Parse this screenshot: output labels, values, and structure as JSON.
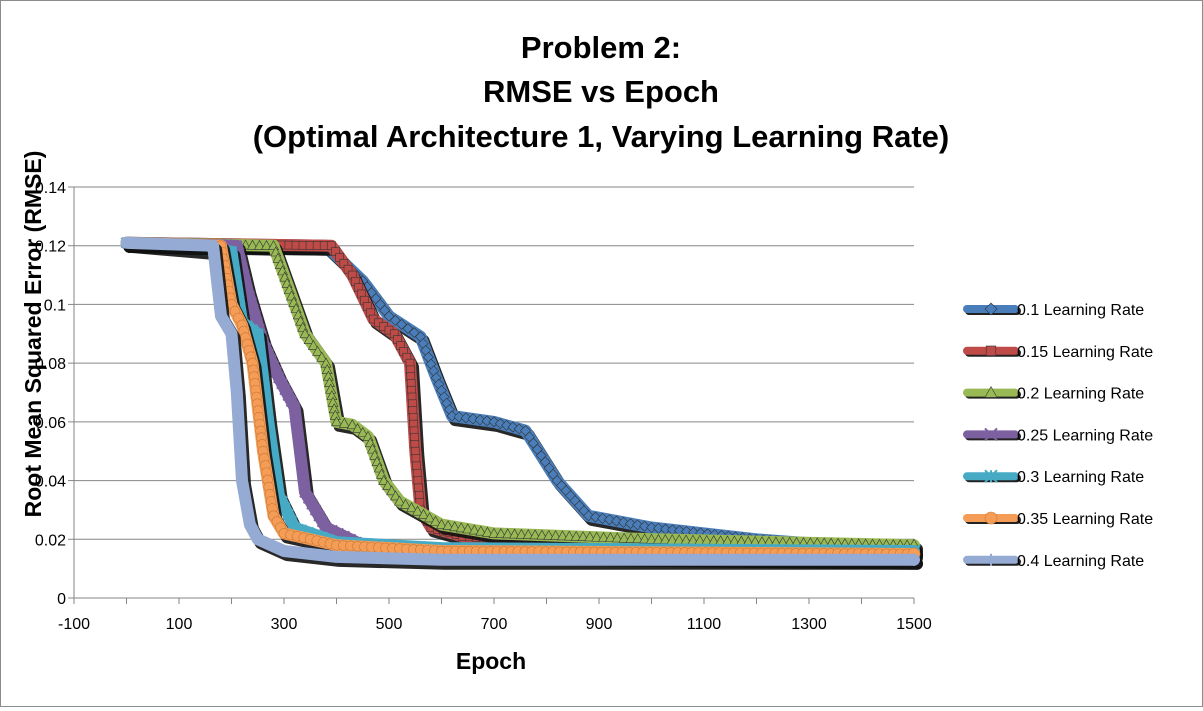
{
  "chart_data": {
    "type": "line",
    "title_lines": [
      "Problem 2:",
      "RMSE vs Epoch",
      "(Optimal Architecture 1, Varying Learning Rate)"
    ],
    "xlabel": "Epoch",
    "ylabel": "Root Mean Squared Error (RMSE)",
    "xlim": [
      -100,
      1500
    ],
    "ylim": [
      0,
      0.14
    ],
    "x_ticks": [
      "-100",
      "100",
      "300",
      "500",
      "700",
      "900",
      "1100",
      "1300",
      "1500"
    ],
    "y_ticks": [
      "0",
      "0.02",
      "0.04",
      "0.06",
      "0.08",
      "0.1",
      "0.12",
      "0.14"
    ],
    "grid": "horizontal",
    "legend_position": "right",
    "series": [
      {
        "name": "0.1 Learning Rate",
        "color": "#4A7EBB",
        "marker": "diamond",
        "x": [
          0,
          380,
          450,
          500,
          560,
          590,
          620,
          700,
          760,
          820,
          880,
          1000,
          1200,
          1500
        ],
        "y": [
          0.121,
          0.12,
          0.108,
          0.096,
          0.089,
          0.075,
          0.062,
          0.06,
          0.057,
          0.04,
          0.028,
          0.024,
          0.02,
          0.016
        ]
      },
      {
        "name": "0.15 Learning Rate",
        "color": "#BE4B48",
        "marker": "square",
        "x": [
          0,
          390,
          430,
          470,
          510,
          540,
          550,
          560,
          580,
          640,
          800,
          1500
        ],
        "y": [
          0.121,
          0.12,
          0.11,
          0.095,
          0.09,
          0.08,
          0.05,
          0.03,
          0.024,
          0.021,
          0.019,
          0.017
        ]
      },
      {
        "name": "0.2 Learning Rate",
        "color": "#98B954",
        "marker": "triangle",
        "x": [
          0,
          280,
          310,
          340,
          380,
          400,
          430,
          460,
          490,
          520,
          600,
          700,
          1000,
          1500
        ],
        "y": [
          0.121,
          0.12,
          0.105,
          0.09,
          0.08,
          0.06,
          0.059,
          0.055,
          0.04,
          0.033,
          0.025,
          0.022,
          0.02,
          0.018
        ]
      },
      {
        "name": "0.25 Learning Rate",
        "color": "#7D60A0",
        "marker": "x",
        "x": [
          0,
          210,
          230,
          260,
          290,
          320,
          340,
          380,
          450,
          600,
          1000,
          1500
        ],
        "y": [
          0.121,
          0.12,
          0.105,
          0.087,
          0.075,
          0.065,
          0.036,
          0.024,
          0.018,
          0.015,
          0.014,
          0.013
        ]
      },
      {
        "name": "0.3 Learning Rate",
        "color": "#46AAC5",
        "marker": "star",
        "x": [
          0,
          200,
          220,
          250,
          270,
          290,
          320,
          400,
          600,
          1500
        ],
        "y": [
          0.121,
          0.118,
          0.094,
          0.09,
          0.06,
          0.035,
          0.024,
          0.019,
          0.017,
          0.016
        ]
      },
      {
        "name": "0.35 Learning Rate",
        "color": "#F59D56",
        "marker": "circle",
        "x": [
          0,
          180,
          200,
          220,
          240,
          260,
          280,
          300,
          400,
          600,
          1500
        ],
        "y": [
          0.121,
          0.12,
          0.1,
          0.093,
          0.08,
          0.05,
          0.028,
          0.022,
          0.018,
          0.016,
          0.015
        ]
      },
      {
        "name": "0.4 Learning Rate",
        "color": "#95ABD4",
        "marker": "plus",
        "x": [
          0,
          165,
          180,
          200,
          210,
          220,
          235,
          250,
          300,
          400,
          600,
          1000,
          1500
        ],
        "y": [
          0.121,
          0.12,
          0.096,
          0.09,
          0.07,
          0.04,
          0.025,
          0.02,
          0.016,
          0.014,
          0.013,
          0.013,
          0.013
        ]
      }
    ]
  }
}
